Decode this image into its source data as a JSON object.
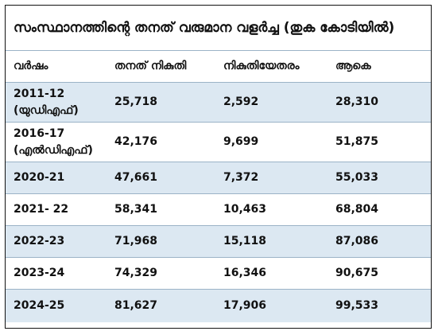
{
  "title": "സംസ്ഥാനത്തിന്റെ തനത് വരുമാന വളർച്ച (തുക കോടിയിൽ)",
  "columns": [
    "വർഷം",
    "തനത് നികുതി",
    "നികുതിയേതരം",
    "ആകെ"
  ],
  "rows": [
    {
      "year": "2011-12\n(യുഡിഎഫ്)",
      "tax": "25,718",
      "nontax": "2,592",
      "total": "28,310"
    },
    {
      "year": "2016-17\n(എൽഡിഎഫ്)",
      "tax": "42,176",
      "nontax": "9,699",
      "total": "51,875"
    },
    {
      "year": "2020-21",
      "tax": "47,661",
      "nontax": "7,372",
      "total": "55,033"
    },
    {
      "year": "2021- 22",
      "tax": "58,341",
      "nontax": "10,463",
      "total": "68,804"
    },
    {
      "year": "2022-23",
      "tax": "71,968",
      "nontax": "15,118",
      "total": "87,086"
    },
    {
      "year": "2023-24",
      "tax": "74,329",
      "nontax": "16,346",
      "total": "90,675"
    },
    {
      "year": "2024-25",
      "tax": "81,627",
      "nontax": "17,906",
      "total": "99,533"
    }
  ]
}
